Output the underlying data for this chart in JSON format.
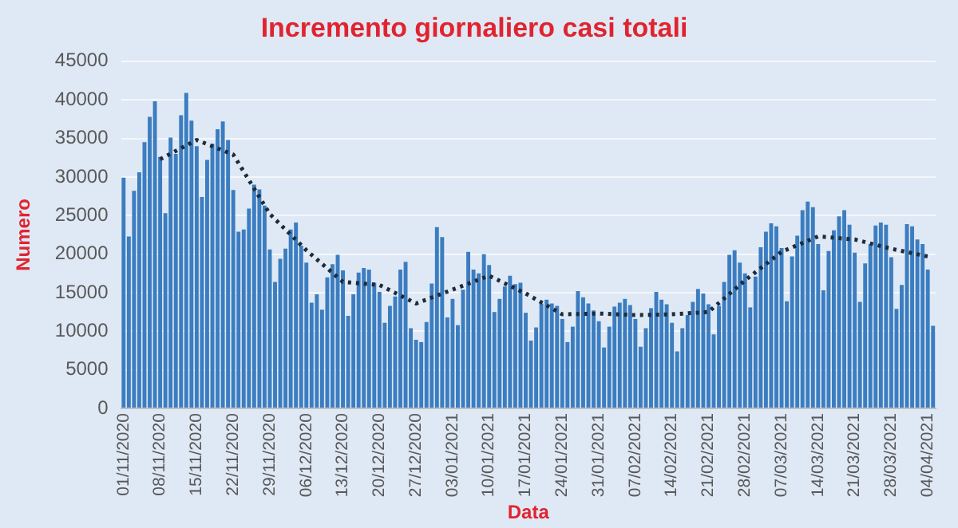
{
  "chart_data": {
    "type": "bar",
    "title": "Incremento giornaliero casi totali",
    "xlabel": "Data",
    "ylabel": "Numero",
    "categories": [
      "01/11/2020",
      null,
      null,
      null,
      null,
      null,
      null,
      "08/11/2020",
      null,
      null,
      null,
      null,
      null,
      null,
      "15/11/2020",
      null,
      null,
      null,
      null,
      null,
      null,
      "22/11/2020",
      null,
      null,
      null,
      null,
      null,
      null,
      "29/11/2020",
      null,
      null,
      null,
      null,
      null,
      null,
      "06/12/2020",
      null,
      null,
      null,
      null,
      null,
      null,
      "13/12/2020",
      null,
      null,
      null,
      null,
      null,
      null,
      "20/12/2020",
      null,
      null,
      null,
      null,
      null,
      null,
      "27/12/2020",
      null,
      null,
      null,
      null,
      null,
      null,
      "03/01/2021",
      null,
      null,
      null,
      null,
      null,
      null,
      "10/01/2021",
      null,
      null,
      null,
      null,
      null,
      null,
      "17/01/2021",
      null,
      null,
      null,
      null,
      null,
      null,
      "24/01/2021",
      null,
      null,
      null,
      null,
      null,
      null,
      "31/01/2021",
      null,
      null,
      null,
      null,
      null,
      null,
      "07/02/2021",
      null,
      null,
      null,
      null,
      null,
      null,
      "14/02/2021",
      null,
      null,
      null,
      null,
      null,
      null,
      "21/02/2021",
      null,
      null,
      null,
      null,
      null,
      null,
      "28/02/2021",
      null,
      null,
      null,
      null,
      null,
      null,
      "07/03/2021",
      null,
      null,
      null,
      null,
      null,
      null,
      "14/03/2021",
      null,
      null,
      null,
      null,
      null,
      null,
      "21/03/2021",
      null,
      null,
      null,
      null,
      null,
      null,
      "28/03/2021",
      null,
      null,
      null,
      null,
      null,
      null,
      "04/04/2021",
      null
    ],
    "series": [
      {
        "color": "#3b7dc0",
        "values": [
          29900,
          22300,
          28200,
          30600,
          34500,
          37800,
          39800,
          32600,
          25300,
          35100,
          33000,
          38000,
          40900,
          37300,
          34000,
          27400,
          32200,
          34300,
          36200,
          37200,
          34800,
          28300,
          22900,
          23200,
          25900,
          29000,
          28400,
          26300,
          20600,
          16400,
          19400,
          20700,
          23200,
          24100,
          21100,
          18900,
          13700,
          14800,
          12800,
          17000,
          18700,
          19900,
          17900,
          12000,
          14800,
          17600,
          18200,
          18000,
          16300,
          15100,
          11100,
          13300,
          14500,
          18000,
          19000,
          10400,
          8900,
          8600,
          11200,
          16200,
          23500,
          22200,
          11800,
          14200,
          10800,
          15400,
          20300,
          18000,
          17500,
          20000,
          18600,
          12500,
          14200,
          15800,
          17200,
          16100,
          16300,
          12400,
          8800,
          10500,
          13600,
          14100,
          13600,
          13300,
          11600,
          8600,
          10600,
          15200,
          14400,
          13600,
          12700,
          11300,
          7900,
          10600,
          13200,
          13700,
          14200,
          13400,
          11600,
          8000,
          10400,
          13000,
          15100,
          14100,
          13500,
          11100,
          7400,
          10400,
          12100,
          13800,
          15500,
          14900,
          13500,
          9600,
          13300,
          16400,
          19900,
          20500,
          18900,
          17500,
          13100,
          17100,
          20900,
          22900,
          24000,
          23600,
          20800,
          13900,
          19700,
          22400,
          25700,
          26800,
          26100,
          21300,
          15300,
          20400,
          23100,
          24900,
          25700,
          23800,
          20200,
          13800,
          18800,
          21300,
          23700,
          24100,
          23800,
          19600,
          12900,
          16000,
          23900,
          23600,
          21900,
          21300,
          18000,
          10700
        ]
      },
      {
        "type": "line",
        "color": "#1f2a38",
        "line_style": "dotted",
        "marker": "none",
        "x": [
          "08/11/2020",
          "15/11/2020",
          "22/11/2020",
          "29/11/2020",
          "06/12/2020",
          "13/12/2020",
          "20/12/2020",
          "27/12/2020",
          "03/01/2021",
          "10/01/2021",
          "17/01/2021",
          "24/01/2021",
          "31/01/2021",
          "07/02/2021",
          "14/02/2021",
          "21/02/2021",
          "28/02/2021",
          "07/03/2021",
          "14/03/2021",
          "21/03/2021",
          "28/03/2021",
          "04/04/2021"
        ],
        "values": [
          32300,
          34800,
          32900,
          25200,
          20500,
          16400,
          16000,
          13600,
          15400,
          17200,
          14900,
          12200,
          12300,
          12100,
          12200,
          12500,
          16600,
          20300,
          22300,
          21900,
          20700,
          19700
        ]
      }
    ],
    "ylim": [
      0,
      45000
    ],
    "yticks": [
      0,
      5000,
      10000,
      15000,
      20000,
      25000,
      30000,
      35000,
      40000,
      45000
    ],
    "grid": "y",
    "legend": false
  }
}
